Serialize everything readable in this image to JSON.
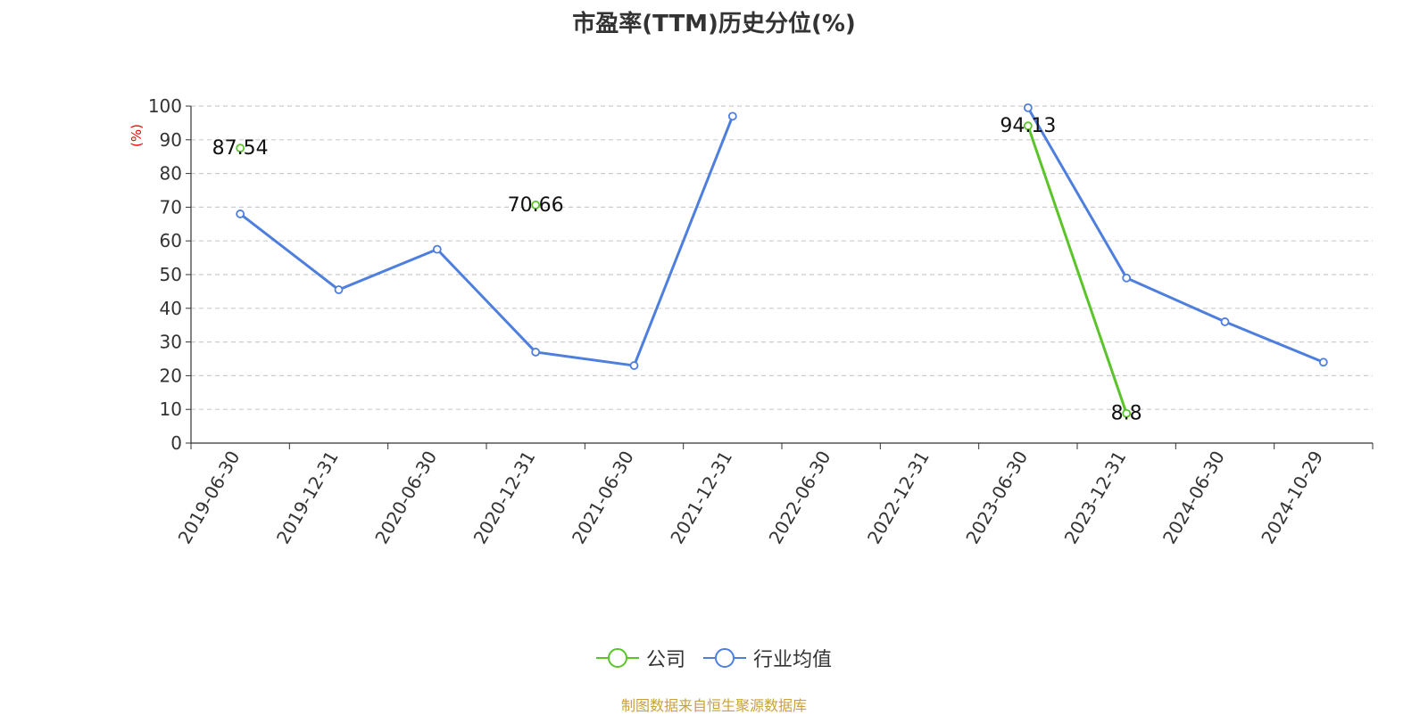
{
  "chart_data": {
    "type": "line",
    "title": "市盈率(TTM)历史分位(%)",
    "ylabel": "(%)",
    "xlabel": "",
    "ylim": [
      0,
      100
    ],
    "y_ticks": [
      0,
      10,
      20,
      30,
      40,
      50,
      60,
      70,
      80,
      90,
      100
    ],
    "grid": true,
    "legend_position": "bottom",
    "categories": [
      "2019-06-30",
      "2019-12-31",
      "2020-06-30",
      "2020-12-31",
      "2021-06-30",
      "2021-12-31",
      "2022-06-30",
      "2022-12-31",
      "2023-06-30",
      "2023-12-31",
      "2024-06-30",
      "2024-10-29"
    ],
    "series": [
      {
        "name": "公司",
        "color": "#5ac42a",
        "values": [
          87.54,
          null,
          null,
          70.66,
          null,
          null,
          null,
          null,
          94.13,
          8.8,
          null,
          null
        ],
        "data_labels": [
          "87.54",
          "",
          "",
          "70.66",
          "",
          "",
          "",
          "",
          "94.13",
          "8.8",
          "",
          ""
        ]
      },
      {
        "name": "行业均值",
        "color": "#4e7fde",
        "values": [
          68,
          45.5,
          57.5,
          27,
          23,
          97,
          null,
          null,
          99.5,
          49,
          36,
          24
        ]
      }
    ]
  },
  "source_note": "制图数据来自恒生聚源数据库"
}
